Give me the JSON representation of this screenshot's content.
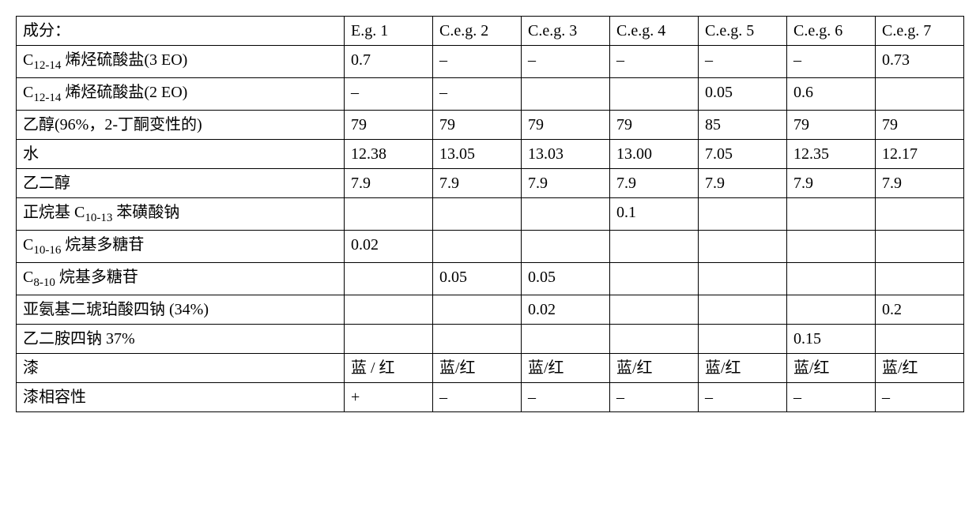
{
  "table": {
    "header_label": "成分：",
    "columns": [
      "E.g. 1",
      "C.e.g. 2",
      "C.e.g. 3",
      "C.e.g. 4",
      "C.e.g. 5",
      "C.e.g. 6",
      "C.e.g. 7"
    ],
    "rows": [
      {
        "label_html": "C<sub>12-14</sub>  烯烃硫酸盐(3 EO)",
        "cells": [
          "0.7",
          "–",
          "–",
          "–",
          "–",
          "–",
          "0.73"
        ]
      },
      {
        "label_html": "C<sub>12-14</sub> 烯烃硫酸盐(2 EO)",
        "cells": [
          "–",
          "–",
          "",
          "",
          "0.05",
          "0.6",
          ""
        ]
      },
      {
        "label_html": "乙醇(96%，2-丁酮变性的)",
        "cells": [
          "79",
          "79",
          "79",
          "79",
          "85",
          "79",
          "79"
        ]
      },
      {
        "label_html": "水",
        "cells": [
          "12.38",
          "13.05",
          "13.03",
          "13.00",
          "7.05",
          "12.35",
          "12.17"
        ]
      },
      {
        "label_html": "乙二醇",
        "cells": [
          "7.9",
          "7.9",
          "7.9",
          "7.9",
          "7.9",
          "7.9",
          "7.9"
        ]
      },
      {
        "label_html": "正烷基 C<sub>10-13</sub> 苯磺酸钠",
        "cells": [
          "",
          "",
          "",
          "0.1",
          "",
          "",
          ""
        ]
      },
      {
        "label_html": "C<sub>10-16</sub> 烷基多糖苷",
        "cells": [
          "0.02",
          "",
          "",
          "",
          "",
          "",
          ""
        ]
      },
      {
        "label_html": "C<sub>8-10</sub> 烷基多糖苷",
        "cells": [
          "",
          "0.05",
          "0.05",
          "",
          "",
          "",
          ""
        ]
      },
      {
        "label_html": "亚氨基二琥珀酸四钠  (34%)",
        "cells": [
          "",
          "",
          "0.02",
          "",
          "",
          "",
          "0.2"
        ]
      },
      {
        "label_html": "乙二胺四钠 37%",
        "cells": [
          "",
          "",
          "",
          "",
          "",
          "0.15",
          ""
        ]
      },
      {
        "label_html": "漆",
        "cells": [
          "蓝 / 红",
          "蓝/红",
          "蓝/红",
          "蓝/红",
          "蓝/红",
          "蓝/红",
          "蓝/红"
        ]
      },
      {
        "label_html": "漆相容性",
        "cells": [
          "+",
          "–",
          "–",
          "–",
          "–",
          "–",
          "–"
        ]
      }
    ]
  }
}
